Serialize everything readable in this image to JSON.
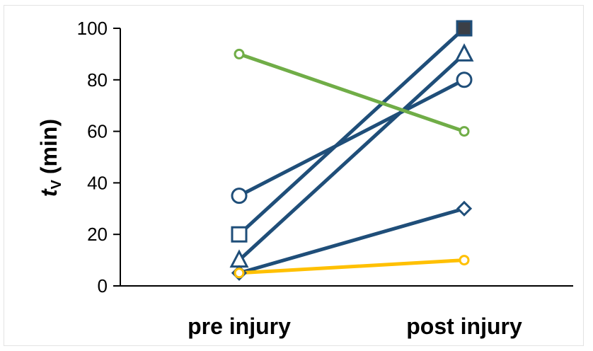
{
  "chart_data": {
    "type": "line",
    "categories": [
      "pre injury",
      "post injury"
    ],
    "ylabel": {
      "main": "t",
      "sub": "V",
      "unit": "(min)"
    },
    "ylim": [
      0,
      100
    ],
    "yticks": [
      0,
      20,
      40,
      60,
      80,
      100
    ],
    "grid": false,
    "legend": "none",
    "series": [
      {
        "marker": "circle",
        "color": "#1f4e79",
        "values": [
          35,
          80
        ]
      },
      {
        "marker": "square",
        "color": "#1f4e79",
        "values": [
          20,
          100
        ]
      },
      {
        "marker": "triangle",
        "color": "#1f4e79",
        "values": [
          10,
          90
        ]
      },
      {
        "marker": "diamond",
        "color": "#1f4e79",
        "values": [
          5,
          30
        ]
      },
      {
        "marker": "circle-small",
        "color": "#70ad47",
        "values": [
          90,
          60
        ]
      },
      {
        "marker": "circle-small",
        "color": "#ffc000",
        "values": [
          5,
          10
        ]
      }
    ]
  }
}
